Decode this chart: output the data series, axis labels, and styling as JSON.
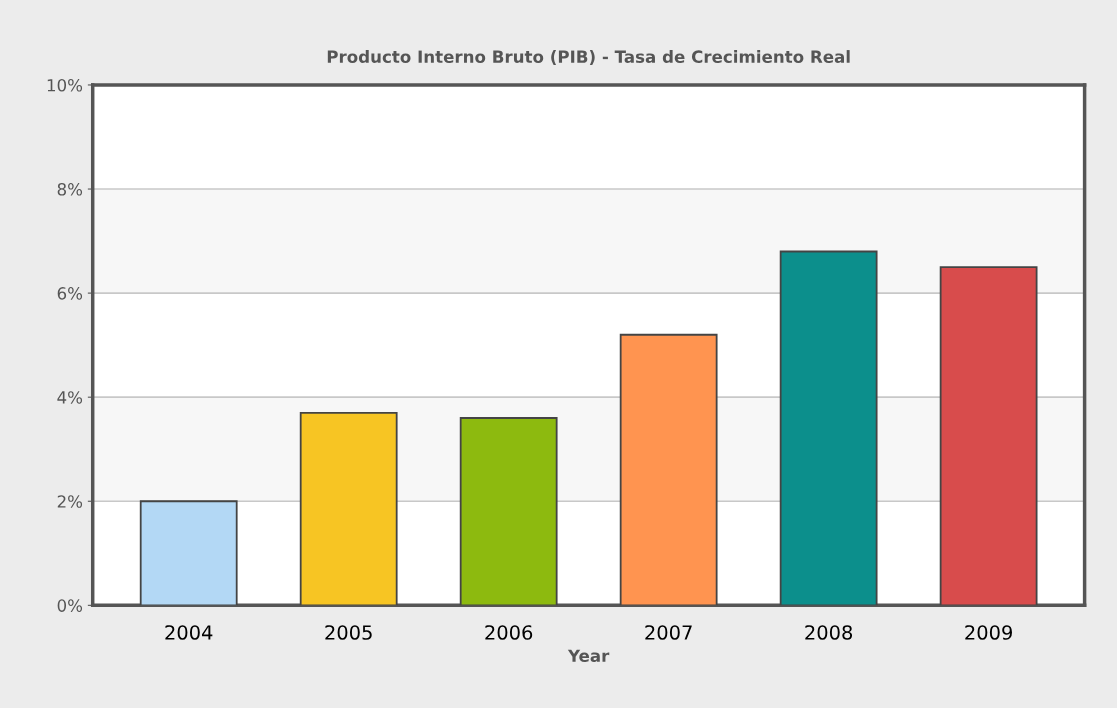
{
  "chart_data": {
    "type": "bar",
    "title": "Producto Interno Bruto (PIB) - Tasa de Crecimiento Real",
    "xlabel": "Year",
    "categories": [
      "2004",
      "2005",
      "2006",
      "2007",
      "2008",
      "2009"
    ],
    "values": [
      2.0,
      3.7,
      3.6,
      5.2,
      6.8,
      6.5
    ],
    "colors": [
      "#b3d8f5",
      "#f7c523",
      "#8dba0f",
      "#ff9450",
      "#0c8f8c",
      "#d84c4c"
    ],
    "ylim": [
      0,
      10
    ],
    "yticks": [
      {
        "value": 0,
        "label": "0%"
      },
      {
        "value": 2,
        "label": "2%"
      },
      {
        "value": 4,
        "label": "4%"
      },
      {
        "value": 6,
        "label": "6%"
      },
      {
        "value": 8,
        "label": "8%"
      },
      {
        "value": 10,
        "label": "10%"
      }
    ],
    "grid": "y",
    "legend": false
  }
}
